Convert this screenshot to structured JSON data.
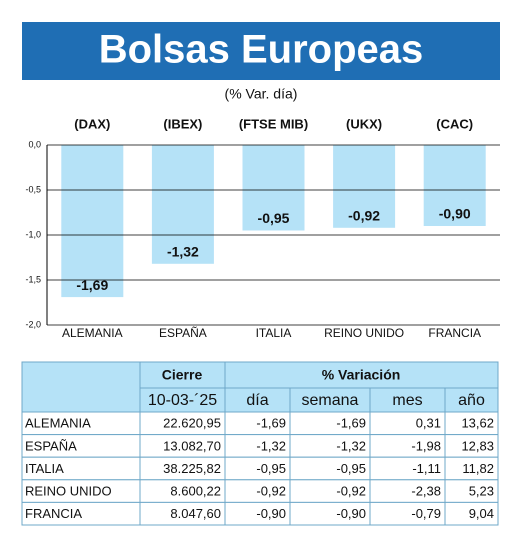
{
  "chart_data": {
    "type": "bar",
    "title": "Bolsas Europeas",
    "subtitle": "(% Var. día)",
    "indices": [
      "(DAX)",
      "(IBEX)",
      "(FTSE MIB)",
      "(UKX)",
      "(CAC)"
    ],
    "categories": [
      "ALEMANIA",
      "ESPAÑA",
      "ITALIA",
      "REINO UNIDO",
      "FRANCIA"
    ],
    "values": [
      -1.69,
      -1.32,
      -0.95,
      -0.92,
      -0.9
    ],
    "value_labels": [
      "-1,69",
      "-1,32",
      "-0,95",
      "-0,92",
      "-0,90"
    ],
    "color": "#b5e2f7",
    "ylim": [
      -2,
      0
    ],
    "yticks": [
      {
        "value": 0,
        "label": "0,0"
      },
      {
        "value": -0.5,
        "label": "-0,5"
      },
      {
        "value": -1,
        "label": "-1,0"
      },
      {
        "value": -1.5,
        "label": "-1,5"
      },
      {
        "value": -2,
        "label": "-2,0"
      }
    ],
    "grid": true
  },
  "table": {
    "group_headers": [
      "Cierre",
      "% Variación"
    ],
    "columns": [
      "10-03-´25",
      "día",
      "semana",
      "mes",
      "año"
    ],
    "rows": [
      [
        "ALEMANIA",
        "22.620,95",
        "-1,69",
        "-1,69",
        "0,31",
        "13,62"
      ],
      [
        "ESPAÑA",
        "13.082,70",
        "-1,32",
        "-1,32",
        "-1,98",
        "12,83"
      ],
      [
        "ITALIA",
        "38.225,82",
        "-0,95",
        "-0,95",
        "-1,11",
        "11,82"
      ],
      [
        "REINO UNIDO",
        "8.600,22",
        "-0,92",
        "-0,92",
        "-2,38",
        "5,23"
      ],
      [
        "FRANCIA",
        "8.047,60",
        "-0,90",
        "-0,90",
        "-0,79",
        "9,04"
      ]
    ]
  }
}
